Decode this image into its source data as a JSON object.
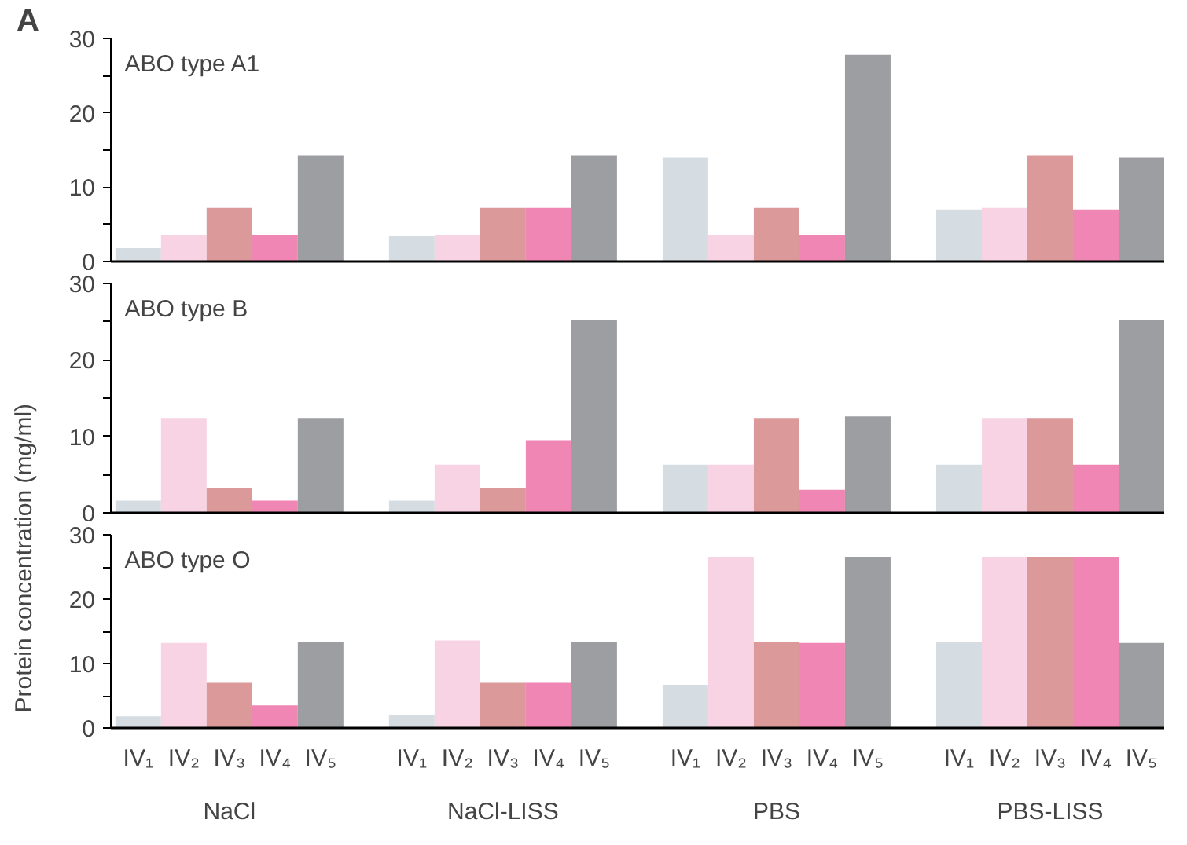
{
  "chart_data": [
    {
      "type": "bar",
      "title": "A",
      "subtitle": "ABO type A1",
      "tick_labels": "y",
      "grid": false,
      "categories": [
        null,
        null,
        null,
        null,
        null,
        null,
        null,
        null,
        null,
        null,
        null,
        null,
        null,
        null,
        null,
        null,
        null,
        null,
        null,
        null,
        null,
        null,
        null
      ],
      "values": [
        1.8,
        3.6,
        7.2,
        3.6,
        14.2,
        null,
        3.4,
        3.6,
        7.2,
        7.2,
        14.2,
        null,
        14,
        3.6,
        7.2,
        3.6,
        27.8,
        null,
        7,
        7.2,
        14.2,
        7,
        14
      ],
      "colors": [
        "#d5dde2",
        "#f8d3e3",
        "#dc999a",
        "#ef86b3",
        "#9d9ea2",
        null,
        "#d5dde2",
        "#f8d3e3",
        "#dc999a",
        "#ef86b3",
        "#9d9ea2",
        null,
        "#d5dde2",
        "#f8d3e3",
        "#dc999a",
        "#ef86b3",
        "#9d9ea2",
        null,
        "#d5dde2",
        "#f8d3e3",
        "#dc999a",
        "#ef86b3",
        "#9d9ea2"
      ],
      "ylim": [
        0,
        30
      ],
      "yticks": [
        0,
        {
          "value": 5,
          "label": null
        },
        10,
        {
          "value": 15,
          "label": null
        },
        20,
        {
          "value": 25,
          "label": null
        },
        30
      ]
    },
    {
      "type": "bar",
      "subtitle": "ABO type B",
      "ylabel": "Protein concentration (mg/ml)",
      "tick_labels": "y",
      "grid": false,
      "categories": [
        null,
        null,
        null,
        null,
        null,
        null,
        null,
        null,
        null,
        null,
        null,
        null,
        null,
        null,
        null,
        null,
        null,
        null,
        null,
        null,
        null,
        null,
        null
      ],
      "values": [
        1.6,
        12.4,
        3.2,
        1.6,
        12.4,
        null,
        1.6,
        6.3,
        3.2,
        9.5,
        25.2,
        null,
        6.3,
        6.3,
        12.4,
        3,
        12.6,
        null,
        6.3,
        12.4,
        12.4,
        6.3,
        25.2
      ],
      "colors": [
        "#d5dde2",
        "#f8d3e3",
        "#dc999a",
        "#ef86b3",
        "#9d9ea2",
        null,
        "#d5dde2",
        "#f8d3e3",
        "#dc999a",
        "#ef86b3",
        "#9d9ea2",
        null,
        "#d5dde2",
        "#f8d3e3",
        "#dc999a",
        "#ef86b3",
        "#9d9ea2",
        null,
        "#d5dde2",
        "#f8d3e3",
        "#dc999a",
        "#ef86b3",
        "#9d9ea2"
      ],
      "ylim": [
        0,
        30
      ],
      "yticks": [
        0,
        {
          "value": 5,
          "label": null
        },
        10,
        {
          "value": 15,
          "label": null
        },
        20,
        {
          "value": 25,
          "label": null
        },
        30
      ]
    },
    {
      "type": "bar",
      "subtitle": "ABO type O",
      "grid": false,
      "categories": [
        "IV₁",
        "IV₂",
        "IV₃",
        "IV₄",
        "IV₅",
        null,
        "IV₁",
        "IV₂",
        "IV₃",
        "IV₄",
        "IV₅",
        null,
        "IV₁",
        "IV₂",
        "IV₃",
        "IV₄",
        "IV₅",
        null,
        "IV₁",
        "IV₂",
        "IV₃",
        "IV₄",
        "IV₅"
      ],
      "values": [
        1.8,
        13.2,
        7,
        3.5,
        13.4,
        null,
        2,
        13.6,
        7,
        7,
        13.4,
        null,
        6.7,
        26.6,
        13.4,
        13.2,
        26.6,
        null,
        13.4,
        26.6,
        26.6,
        26.6,
        13.2
      ],
      "colors": [
        "#d5dde2",
        "#f8d3e3",
        "#dc999a",
        "#ef86b3",
        "#9d9ea2",
        null,
        "#d5dde2",
        "#f8d3e3",
        "#dc999a",
        "#ef86b3",
        "#9d9ea2",
        null,
        "#d5dde2",
        "#f8d3e3",
        "#dc999a",
        "#ef86b3",
        "#9d9ea2",
        null,
        "#d5dde2",
        "#f8d3e3",
        "#dc999a",
        "#ef86b3",
        "#9d9ea2"
      ],
      "annotations": [
        "NaCl",
        "NaCl-LISS",
        "PBS",
        "PBS-LISS"
      ],
      "ylim": [
        0,
        30
      ],
      "yticks": [
        0,
        {
          "value": 5,
          "label": null
        },
        10,
        {
          "value": 15,
          "label": null
        },
        20,
        {
          "value": 25,
          "label": null
        },
        30
      ]
    }
  ]
}
